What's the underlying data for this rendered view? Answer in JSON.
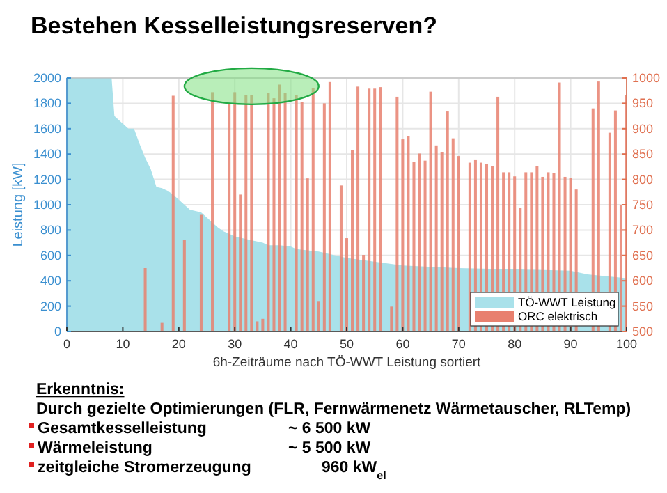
{
  "chart_data": {
    "type": "bar",
    "title": "Bestehen Kesselleistungsreserven?",
    "xlabel": "6h-Zeiträume nach TÖ-WWT Leistung sortiert",
    "ylabel": "Leistung [kW]",
    "xlim": [
      0,
      100
    ],
    "xticks": [
      0,
      10,
      20,
      30,
      40,
      50,
      60,
      70,
      80,
      90,
      100
    ],
    "ylim": [
      0,
      2000
    ],
    "yticks": [
      0,
      200,
      400,
      600,
      800,
      1000,
      1200,
      1400,
      1600,
      1800,
      2000
    ],
    "y2lim": [
      500,
      1000
    ],
    "y2ticks": [
      500,
      550,
      600,
      650,
      700,
      750,
      800,
      850,
      900,
      950,
      1000
    ],
    "grid": true,
    "legend": "bottom right",
    "series": [
      {
        "name": "TÖ-WWT Leistung",
        "type": "area",
        "color": "#a9e1ea",
        "x": [
          0,
          8,
          8.5,
          9,
          10,
          11,
          12,
          13,
          14,
          15,
          16,
          17,
          18,
          19,
          20,
          21,
          22,
          23,
          24,
          25,
          26,
          27,
          28,
          29,
          30,
          31,
          32,
          33,
          34,
          35,
          36,
          38,
          40,
          41,
          45,
          50,
          60,
          70,
          80,
          90,
          93,
          100
        ],
        "values": [
          2000,
          2000,
          1700,
          1680,
          1640,
          1600,
          1600,
          1480,
          1370,
          1280,
          1140,
          1130,
          1110,
          1080,
          1040,
          1000,
          960,
          950,
          940,
          900,
          860,
          820,
          790,
          770,
          750,
          740,
          730,
          720,
          710,
          700,
          680,
          680,
          670,
          650,
          630,
          580,
          520,
          500,
          490,
          480,
          450,
          420
        ]
      },
      {
        "name": "ORC elektrisch",
        "axis": "y2",
        "color": "#e8806f",
        "x": [
          14,
          17,
          19,
          21,
          24,
          26,
          29,
          30,
          31,
          32,
          33,
          34,
          35,
          36,
          37,
          38,
          39,
          41,
          42,
          43,
          44,
          45,
          46,
          47,
          49,
          50,
          51,
          52,
          53,
          54,
          55,
          56,
          58,
          59,
          60,
          61,
          62,
          63,
          64,
          65,
          66,
          67,
          68,
          69,
          70,
          72,
          73,
          74,
          75,
          76,
          77,
          78,
          79,
          80,
          81,
          82,
          83,
          84,
          85,
          86,
          87,
          88,
          89,
          90,
          91,
          94,
          95,
          97,
          98,
          99,
          100
        ],
        "values": [
          625,
          517,
          965,
          680,
          730,
          972,
          950,
          972,
          770,
          967,
          967,
          520,
          525,
          970,
          960,
          987,
          970,
          967,
          952,
          802,
          980,
          560,
          950,
          992,
          788,
          684,
          858,
          983,
          651,
          979,
          979,
          982,
          549,
          963,
          879,
          885,
          835,
          851,
          837,
          973,
          867,
          853,
          934,
          881,
          846,
          833,
          838,
          833,
          831,
          826,
          963,
          814,
          814,
          806,
          744,
          814,
          814,
          826,
          805,
          814,
          812,
          991,
          805,
          803,
          780,
          940,
          993,
          892,
          936,
          750,
          967
        ]
      }
    ],
    "annotations": [
      "Erkenntnis:",
      "Durch gezielte Optimierungen (FLR, Fernwärmenetz Wärmetauscher, RLTemp)",
      "Gesamtkesselleistung",
      "~ 6 500 kW",
      "Wärmeleistung",
      "~ 5 500 kW",
      "zeitgleiche Stromerzeugung",
      "960 kW$_{el}$"
    ]
  }
}
